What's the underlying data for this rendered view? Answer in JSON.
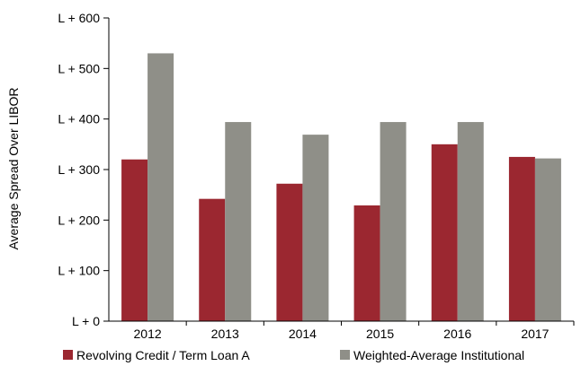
{
  "chart_data": {
    "type": "bar",
    "title": "",
    "xlabel": "",
    "ylabel": "Average Spread Over LIBOR",
    "categories": [
      "2012",
      "2013",
      "2014",
      "2015",
      "2016",
      "2017"
    ],
    "series": [
      {
        "name": "Revolving Credit / Term Loan A",
        "color": "#9b2730",
        "values": [
          320,
          242,
          272,
          229,
          350,
          325
        ]
      },
      {
        "name": "Weighted-Average Institutional",
        "color": "#8f8f88",
        "values": [
          530,
          394,
          369,
          394,
          394,
          322
        ]
      }
    ],
    "ylim": [
      0,
      600
    ],
    "yticks": [
      0,
      100,
      200,
      300,
      400,
      500,
      600
    ],
    "ytick_labels": [
      "L + 0",
      "L + 100",
      "L + 200",
      "L + 300",
      "L + 400",
      "L + 500",
      "L + 600"
    ],
    "grid": false,
    "legend_position": "bottom"
  }
}
